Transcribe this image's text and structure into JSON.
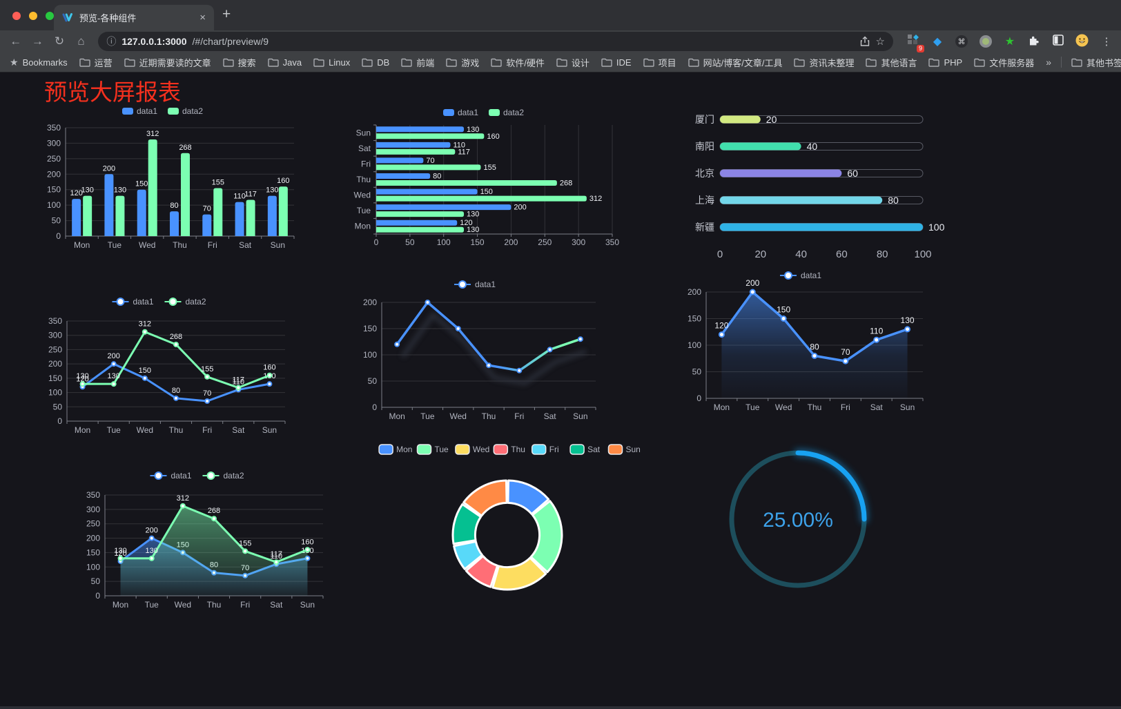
{
  "browser": {
    "tab": {
      "title": "预览-各种组件",
      "close_glyph": "×",
      "new_tab_glyph": "+"
    },
    "toolbar": {
      "url_host": "127.0.0.1:3000",
      "url_path": "/#/chart/preview/9",
      "extension_badge": "9",
      "icons": {
        "back": "←",
        "forward": "→",
        "reload": "↻",
        "home": "⌂",
        "info": "ⓘ",
        "star": "☆",
        "menu": "⋮",
        "cmd": "⌘",
        "gem": "◆",
        "green_star": "★"
      }
    },
    "bookmarks_bar": {
      "bookmarks_label": "Bookmarks",
      "folders": [
        "运营",
        "近期需要读的文章",
        "搜索",
        "Java",
        "Linux",
        "DB",
        "前端",
        "游戏",
        "软件/硬件",
        "设计",
        "IDE",
        "项目",
        "网站/博客/文章/工具",
        "资讯未整理",
        "其他语言",
        "PHP",
        "文件服务器"
      ],
      "overflow_glyph": "»",
      "other_label": "其他书签"
    }
  },
  "page": {
    "title": "预览大屏报表",
    "title_color": "#f3301e",
    "background": "#15151b"
  },
  "chart_data": [
    {
      "id": "bar-grouped",
      "type": "bar",
      "categories": [
        "Mon",
        "Tue",
        "Wed",
        "Thu",
        "Fri",
        "Sat",
        "Sun"
      ],
      "series": [
        {
          "name": "data1",
          "color": "#4992ff",
          "values": [
            120,
            200,
            150,
            80,
            70,
            110,
            130
          ]
        },
        {
          "name": "data2",
          "color": "#7cffb2",
          "values": [
            130,
            130,
            312,
            268,
            155,
            117,
            160
          ]
        }
      ],
      "ylim": [
        0,
        350
      ],
      "ytick_step": 50,
      "legend_position": "top",
      "grid": true
    },
    {
      "id": "bar-horizontal",
      "type": "bar-horizontal",
      "categories": [
        "Mon",
        "Tue",
        "Wed",
        "Thu",
        "Fri",
        "Sat",
        "Sun"
      ],
      "category_order": "bottom-to-top",
      "series": [
        {
          "name": "data1",
          "color": "#4992ff",
          "values": [
            120,
            200,
            150,
            80,
            70,
            110,
            130
          ]
        },
        {
          "name": "data2",
          "color": "#7cffb2",
          "values": [
            130,
            130,
            312,
            268,
            155,
            117,
            160
          ]
        }
      ],
      "xlim": [
        0,
        350
      ],
      "xtick_step": 50,
      "legend_position": "top",
      "grid": true
    },
    {
      "id": "capsule-progress",
      "type": "capsule-bar",
      "categories": [
        "厦门",
        "南阳",
        "北京",
        "上海",
        "新疆"
      ],
      "values": [
        20,
        40,
        60,
        80,
        100
      ],
      "colors": [
        "#d2e981",
        "#41dfad",
        "#8b84e5",
        "#72d6e9",
        "#2fb2e5"
      ],
      "xlim": [
        0,
        100
      ],
      "xticks": [
        0,
        20,
        40,
        60,
        80,
        100
      ]
    },
    {
      "id": "line-two-series",
      "type": "line",
      "categories": [
        "Mon",
        "Tue",
        "Wed",
        "Thu",
        "Fri",
        "Sat",
        "Sun"
      ],
      "series": [
        {
          "name": "data1",
          "color": "#4992ff",
          "values": [
            120,
            200,
            150,
            80,
            70,
            110,
            130
          ]
        },
        {
          "name": "data2",
          "color": "#7cffb2",
          "values": [
            130,
            130,
            312,
            268,
            155,
            117,
            160
          ]
        }
      ],
      "ylim": [
        0,
        350
      ],
      "ytick_step": 50,
      "legend_position": "top",
      "data_labels": true
    },
    {
      "id": "line-gradient",
      "type": "line-gradient",
      "categories": [
        "Mon",
        "Tue",
        "Wed",
        "Thu",
        "Fri",
        "Sat",
        "Sun"
      ],
      "series": [
        {
          "name": "data1",
          "color_start": "#4992ff",
          "color_end": "#7cffb2",
          "values": [
            120,
            200,
            150,
            80,
            70,
            110,
            130
          ]
        }
      ],
      "ylim": [
        0,
        200
      ],
      "ytick_step": 50,
      "legend_position": "top",
      "data_labels": false
    },
    {
      "id": "area-single",
      "type": "area",
      "categories": [
        "Mon",
        "Tue",
        "Wed",
        "Thu",
        "Fri",
        "Sat",
        "Sun"
      ],
      "series": [
        {
          "name": "data1",
          "color": "#4992ff",
          "values": [
            120,
            200,
            150,
            80,
            70,
            110,
            130
          ]
        }
      ],
      "ylim": [
        0,
        200
      ],
      "ytick_step": 50,
      "legend_position": "top",
      "data_labels": true
    },
    {
      "id": "area-two-series",
      "type": "area",
      "categories": [
        "Mon",
        "Tue",
        "Wed",
        "Thu",
        "Fri",
        "Sat",
        "Sun"
      ],
      "series": [
        {
          "name": "data1",
          "color": "#4992ff",
          "values": [
            120,
            200,
            150,
            80,
            70,
            110,
            130
          ]
        },
        {
          "name": "data2",
          "color": "#7cffb2",
          "values": [
            130,
            130,
            312,
            268,
            155,
            117,
            160
          ]
        }
      ],
      "ylim": [
        0,
        350
      ],
      "ytick_step": 50,
      "legend_position": "top",
      "data_labels": true
    },
    {
      "id": "donut",
      "type": "pie",
      "categories": [
        "Mon",
        "Tue",
        "Wed",
        "Thu",
        "Fri",
        "Sat",
        "Sun"
      ],
      "values": [
        120,
        200,
        150,
        80,
        70,
        110,
        130
      ],
      "colors": [
        "#4992ff",
        "#7cffb2",
        "#fddd60",
        "#ff6e76",
        "#58d9f9",
        "#05c091",
        "#ff8a45"
      ],
      "legend_position": "top",
      "inner_radius_ratio": 0.59
    },
    {
      "id": "gauge",
      "type": "gauge",
      "value": 25,
      "value_label": "25.00%",
      "color": "#18a2f2",
      "track_color": "#1d4e5c",
      "text_color": "#3da2ea"
    }
  ]
}
